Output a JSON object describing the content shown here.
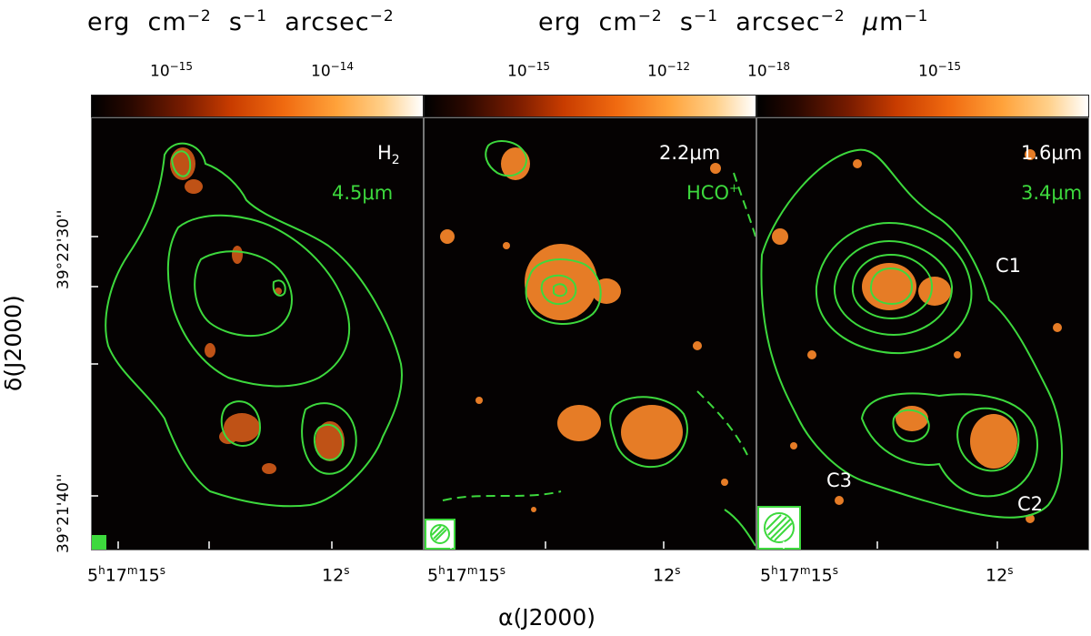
{
  "colorbar_units": {
    "left": "erg cm^-2 s^-1 arcsec^-2",
    "right": "erg cm^-2 s^-1 arcsec^-2 μm^-1"
  },
  "colorbar_ticks": {
    "panel1": [
      "10^-15",
      "10^-14"
    ],
    "panel2": [
      "10^-15",
      "10^-12"
    ],
    "panel3": [
      "10^-18",
      "10^-15"
    ]
  },
  "panels": [
    {
      "image_label": "H2",
      "contour_label": "4.5μm"
    },
    {
      "image_label": "2.2μm",
      "contour_label": "HCO+"
    },
    {
      "image_label": "1.6μm",
      "contour_label": "3.4μm",
      "sources": [
        "C1",
        "C2",
        "C3"
      ]
    }
  ],
  "axes": {
    "xlabel": "α(J2000)",
    "ylabel": "δ(J2000)",
    "ra_ticks": [
      "5h17m15s",
      "12s"
    ],
    "dec_ticks": [
      "39°22'30''",
      "39°21'40''"
    ]
  },
  "colors": {
    "contour": "#3dd93d",
    "stars": "#ff8a2a",
    "background": "#050202"
  }
}
